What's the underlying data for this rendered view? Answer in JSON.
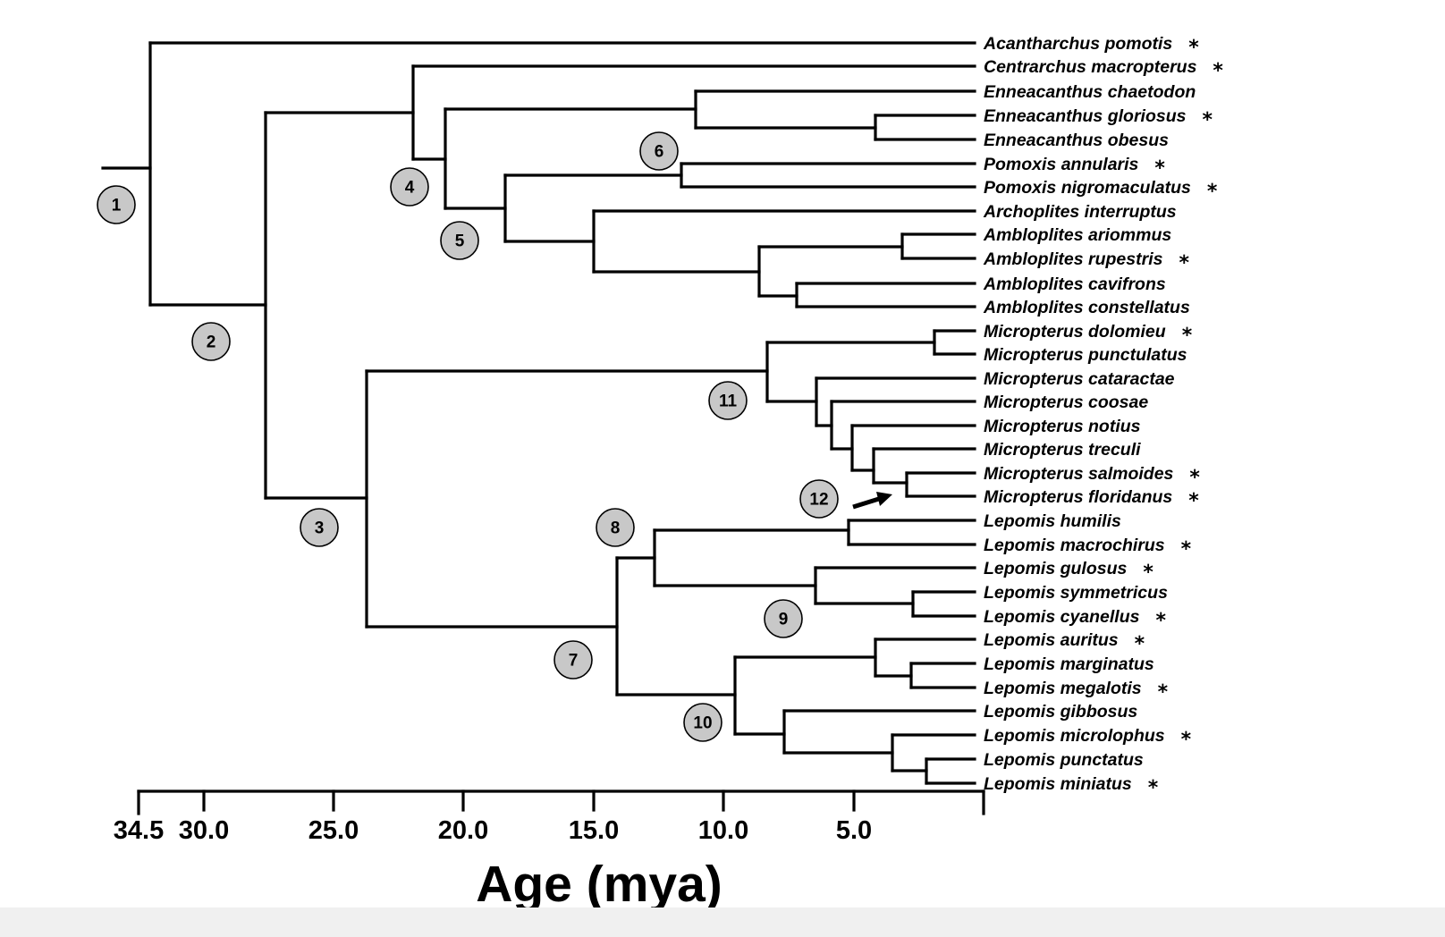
{
  "tree": {
    "taxa": [
      {
        "name": "Acantharchus pomotis",
        "star": "*"
      },
      {
        "name": "Centrarchus macropterus",
        "star": "*"
      },
      {
        "name": "Enneacanthus chaetodon",
        "star": ""
      },
      {
        "name": "Enneacanthus gloriosus",
        "star": "*"
      },
      {
        "name": "Enneacanthus obesus",
        "star": ""
      },
      {
        "name": "Pomoxis annularis",
        "star": "*"
      },
      {
        "name": "Pomoxis nigromaculatus",
        "star": "*"
      },
      {
        "name": "Archoplites interruptus",
        "star": ""
      },
      {
        "name": "Ambloplites ariommus",
        "star": ""
      },
      {
        "name": "Ambloplites rupestris",
        "star": "*"
      },
      {
        "name": "Ambloplites cavifrons",
        "star": ""
      },
      {
        "name": "Ambloplites constellatus",
        "star": ""
      },
      {
        "name": "Micropterus dolomieu",
        "star": "*"
      },
      {
        "name": "Micropterus punctulatus",
        "star": ""
      },
      {
        "name": "Micropterus cataractae",
        "star": ""
      },
      {
        "name": "Micropterus coosae",
        "star": ""
      },
      {
        "name": "Micropterus notius",
        "star": ""
      },
      {
        "name": "Micropterus treculi",
        "star": ""
      },
      {
        "name": "Micropterus salmoides",
        "star": "*"
      },
      {
        "name": "Micropterus floridanus",
        "star": "*"
      },
      {
        "name": "Lepomis humilis",
        "star": ""
      },
      {
        "name": "Lepomis macrochirus",
        "star": "*"
      },
      {
        "name": "Lepomis gulosus",
        "star": "*"
      },
      {
        "name": "Lepomis symmetricus",
        "star": ""
      },
      {
        "name": "Lepomis cyanellus",
        "star": "*"
      },
      {
        "name": "Lepomis auritus",
        "star": "*"
      },
      {
        "name": "Lepomis marginatus",
        "star": ""
      },
      {
        "name": "Lepomis megalotis",
        "star": "*"
      },
      {
        "name": "Lepomis gibbosus",
        "star": ""
      },
      {
        "name": "Lepomis microlophus",
        "star": "*"
      },
      {
        "name": "Lepomis punctatus",
        "star": ""
      },
      {
        "name": "Lepomis miniatus",
        "star": "*"
      }
    ],
    "node_labels": [
      "1",
      "2",
      "3",
      "4",
      "5",
      "6",
      "7",
      "8",
      "9",
      "10",
      "11",
      "12"
    ]
  },
  "axis": {
    "ticks": [
      "34.5",
      "30.0",
      "25.0",
      "20.0",
      "15.0",
      "10.0",
      "5.0"
    ],
    "title": "Age (mya)"
  }
}
